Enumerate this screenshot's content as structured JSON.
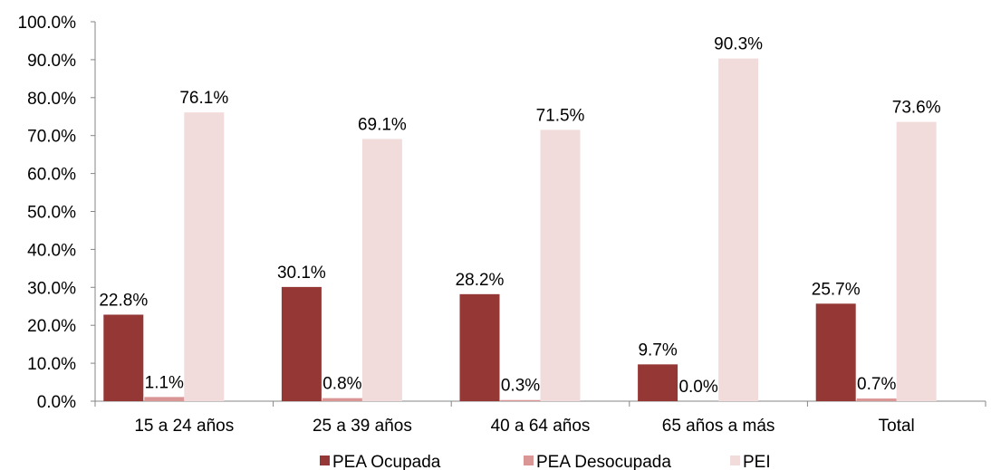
{
  "chart_data": {
    "type": "bar",
    "categories": [
      "15 a 24 años",
      "25 a 39 años",
      "40 a 64 años",
      "65 años a más",
      "Total"
    ],
    "series": [
      {
        "name": "PEA Ocupada",
        "values": [
          22.8,
          30.1,
          28.2,
          9.7,
          25.7
        ],
        "labels": [
          "22.8%",
          "30.1%",
          "28.2%",
          "9.7%",
          "25.7%"
        ],
        "color": "#953735"
      },
      {
        "name": "PEA Desocupada",
        "values": [
          1.1,
          0.8,
          0.3,
          0.0,
          0.7
        ],
        "labels": [
          "1.1%",
          "0.8%",
          "0.3%",
          "0.0%",
          "0.7%"
        ],
        "color": "#D99694"
      },
      {
        "name": "PEI",
        "values": [
          76.1,
          69.1,
          71.5,
          90.3,
          73.6
        ],
        "labels": [
          "76.1%",
          "69.1%",
          "71.5%",
          "90.3%",
          "73.6%"
        ],
        "color": "#F2DCDB"
      }
    ],
    "yticks": [
      "0.0%",
      "10.0%",
      "20.0%",
      "30.0%",
      "40.0%",
      "50.0%",
      "60.0%",
      "70.0%",
      "80.0%",
      "90.0%",
      "100.0%"
    ],
    "ylim": [
      0,
      100
    ],
    "grid": false,
    "legend_position": "bottom"
  }
}
